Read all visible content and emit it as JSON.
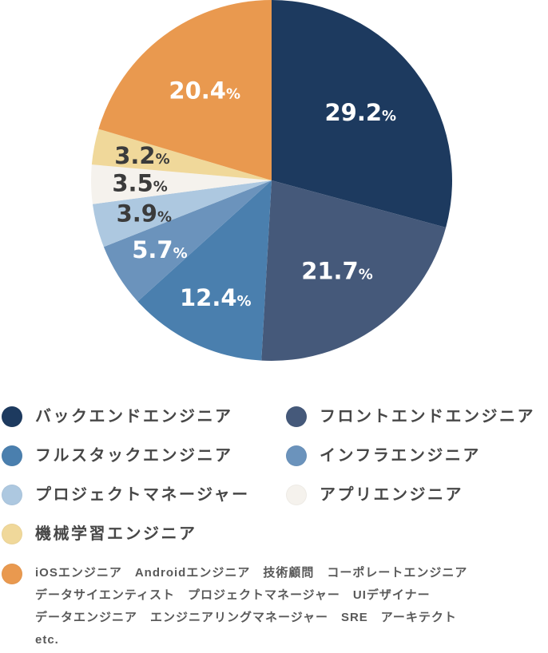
{
  "chart_data": {
    "type": "pie",
    "direction": "clockwise",
    "start_angle_deg": 0,
    "unit": "%",
    "slices": [
      {
        "label": "バックエンドエンジニア",
        "value": 29.2,
        "color": "#1d3a5f",
        "text_color": "#ffffff"
      },
      {
        "label": "フロントエンドエンジニア",
        "value": 21.7,
        "color": "#45597a",
        "text_color": "#ffffff"
      },
      {
        "label": "フルスタックエンジニア",
        "value": 12.4,
        "color": "#4a7fae",
        "text_color": "#ffffff"
      },
      {
        "label": "インフラエンジニア",
        "value": 5.7,
        "color": "#6b93bc",
        "text_color": "#ffffff"
      },
      {
        "label": "プロジェクトマネージャー",
        "value": 3.9,
        "color": "#adc8e0",
        "text_color": "#3b3b3b"
      },
      {
        "label": "アプリエンジニア",
        "value": 3.5,
        "color": "#f5f2ed",
        "text_color": "#3b3b3b"
      },
      {
        "label": "機械学習エンジニア",
        "value": 3.2,
        "color": "#f0d89a",
        "text_color": "#3b3b3b"
      },
      {
        "label": "iOSエンジニア　Androidエンジニア　技術顧問　コーポレートエンジニア　データサイエンティスト　プロジェクトマネージャー　UIデザイナー　データエンジニア　エンジニアリングマネージャー　SRE　アーキテクト　etc.",
        "value": 20.4,
        "color": "#e9994f",
        "text_color": "#ffffff"
      }
    ]
  },
  "legend": {
    "other_text": "iOSエンジニア　Androidエンジニア　技術顧問　コーポレートエンジニア\nデータサイエンティスト　プロジェクトマネージャー　UIデザイナー\nデータエンジニア　エンジニアリングマネージャー　SRE　アーキテクト\netc."
  }
}
